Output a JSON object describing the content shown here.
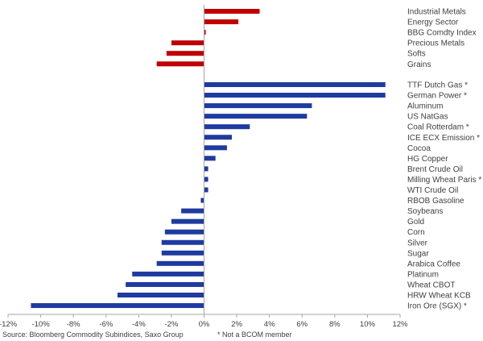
{
  "chart_data": {
    "type": "bar",
    "orientation": "horizontal",
    "colors": {
      "sector": "#c00000",
      "commodity": "#1f3aa0",
      "axis": "#a6a6a6"
    },
    "xlim": [
      -12,
      12
    ],
    "x_ticks": [
      "-12%",
      "-10%",
      "-8%",
      "-6%",
      "-4%",
      "-2%",
      "0%",
      "2%",
      "4%",
      "6%",
      "8%",
      "10%",
      "12%"
    ],
    "grid": false,
    "groups": [
      {
        "name": "sectors",
        "color": "sector",
        "bars": [
          {
            "label": "Industrial Metals",
            "value": 3.4
          },
          {
            "label": "Energy Sector",
            "value": 2.1
          },
          {
            "label": "BBG Comdty Index",
            "value": 0.1
          },
          {
            "label": "Precious Metals",
            "value": -2.0
          },
          {
            "label": "Softs",
            "value": -2.3
          },
          {
            "label": "Grains",
            "value": -2.9
          }
        ]
      },
      {
        "name": "commodities",
        "color": "commodity",
        "bars": [
          {
            "label": "TTF Dutch Gas *",
            "value": 11.1
          },
          {
            "label": "German Power *",
            "value": 11.1
          },
          {
            "label": "Aluminum",
            "value": 6.6
          },
          {
            "label": "US NatGas",
            "value": 6.3
          },
          {
            "label": "Coal Rotterdam *",
            "value": 2.8
          },
          {
            "label": "ICE ECX Emission *",
            "value": 1.7
          },
          {
            "label": "Cocoa",
            "value": 1.4
          },
          {
            "label": "HG Copper",
            "value": 0.7
          },
          {
            "label": "Brent Crude Oil",
            "value": 0.25
          },
          {
            "label": "Milling Wheat Paris *",
            "value": 0.25
          },
          {
            "label": "WTI Crude Oil",
            "value": 0.25
          },
          {
            "label": "RBOB Gasoline",
            "value": -0.2
          },
          {
            "label": "Soybeans",
            "value": -1.4
          },
          {
            "label": "Gold",
            "value": -2.0
          },
          {
            "label": "Corn",
            "value": -2.4
          },
          {
            "label": "Silver",
            "value": -2.6
          },
          {
            "label": "Sugar",
            "value": -2.6
          },
          {
            "label": "Arabica Coffee",
            "value": -2.9
          },
          {
            "label": "Platinum",
            "value": -4.4
          },
          {
            "label": "Wheat CBOT",
            "value": -4.8
          },
          {
            "label": "HRW Wheat KCB",
            "value": -5.3
          },
          {
            "label": "Iron Ore (SGX) *",
            "value": -10.6
          }
        ]
      }
    ]
  },
  "footer": {
    "source": "Source: Bloomberg Commodity Subindices, Saxo Group",
    "note": "* Not a BCOM member"
  }
}
